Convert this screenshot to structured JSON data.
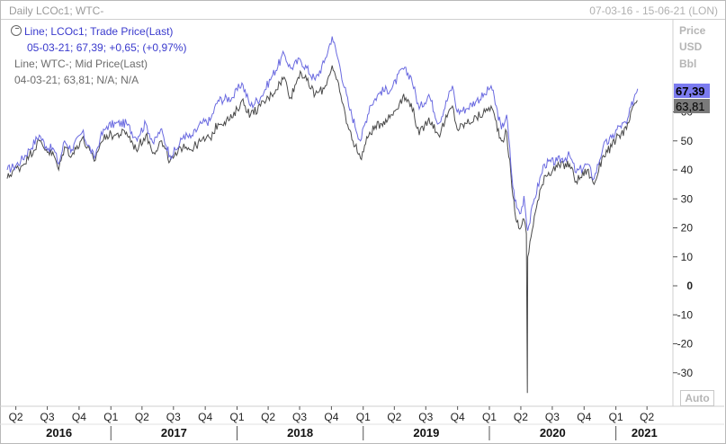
{
  "header": {
    "title": "Daily LCOc1; WTC-",
    "date_range": "07-03-16 - 15-06-21 (LON)"
  },
  "legend": {
    "series1_label": "Line; LCOc1; Trade Price(Last)",
    "series1_value": "05-03-21; 67,39; +0,65; (+0,97%)",
    "series2_label": "Line; WTC-; Mid Price(Last)",
    "series2_value": "04-03-21; 63,81; N/A; N/A"
  },
  "axis_header": {
    "line1": "Price",
    "line2": "USD",
    "line3": "Bbl"
  },
  "auto_button": "Auto",
  "colors": {
    "lco": "#6a6ae0",
    "wtc": "#4a4a4a",
    "lco_badge": "#7b7bf0",
    "wtc_badge": "#7a7a7a",
    "grid_tick": "#555555"
  },
  "chart_data": {
    "type": "line",
    "x_range": [
      "2016-03-07",
      "2021-06-15"
    ],
    "ylim": [
      -38,
      75
    ],
    "y_ticks": [
      60,
      50,
      40,
      30,
      20,
      10,
      0,
      -10,
      -20,
      -30
    ],
    "y_tick_labels": [
      "60",
      "50",
      "40",
      "30",
      "20",
      "10",
      "0",
      "-10",
      "-20",
      "-30"
    ],
    "x_ticks": [
      {
        "label": "Q2",
        "date": "2016-04-01"
      },
      {
        "label": "Q3",
        "date": "2016-07-01"
      },
      {
        "label": "Q4",
        "date": "2016-10-01"
      },
      {
        "label": "Q1",
        "date": "2017-01-01"
      },
      {
        "label": "Q2",
        "date": "2017-04-01"
      },
      {
        "label": "Q3",
        "date": "2017-07-01"
      },
      {
        "label": "Q4",
        "date": "2017-10-01"
      },
      {
        "label": "Q1",
        "date": "2018-01-01"
      },
      {
        "label": "Q2",
        "date": "2018-04-01"
      },
      {
        "label": "Q3",
        "date": "2018-07-01"
      },
      {
        "label": "Q4",
        "date": "2018-10-01"
      },
      {
        "label": "Q1",
        "date": "2019-01-01"
      },
      {
        "label": "Q2",
        "date": "2019-04-01"
      },
      {
        "label": "Q3",
        "date": "2019-07-01"
      },
      {
        "label": "Q4",
        "date": "2019-10-01"
      },
      {
        "label": "Q1",
        "date": "2020-01-01"
      },
      {
        "label": "Q2",
        "date": "2020-04-01"
      },
      {
        "label": "Q3",
        "date": "2020-07-01"
      },
      {
        "label": "Q4",
        "date": "2020-10-01"
      },
      {
        "label": "Q1",
        "date": "2021-01-01"
      },
      {
        "label": "Q2",
        "date": "2021-04-01"
      }
    ],
    "years": [
      {
        "label": "2016",
        "date": "2016-01-01"
      },
      {
        "label": "2017",
        "date": "2017-01-01"
      },
      {
        "label": "2018",
        "date": "2018-01-01"
      },
      {
        "label": "2019",
        "date": "2019-01-01"
      },
      {
        "label": "2020",
        "date": "2020-01-01"
      },
      {
        "label": "2021",
        "date": "2021-01-01"
      }
    ],
    "series": [
      {
        "name": "LCOc1",
        "last_label": "67,39",
        "points": [
          [
            "2016-03-07",
            40
          ],
          [
            "2016-03-25",
            41
          ],
          [
            "2016-04-15",
            43
          ],
          [
            "2016-05-10",
            47
          ],
          [
            "2016-06-08",
            52
          ],
          [
            "2016-06-28",
            48
          ],
          [
            "2016-07-20",
            47
          ],
          [
            "2016-08-03",
            42
          ],
          [
            "2016-08-20",
            50
          ],
          [
            "2016-09-10",
            47
          ],
          [
            "2016-10-10",
            53
          ],
          [
            "2016-11-14",
            44
          ],
          [
            "2016-12-01",
            51
          ],
          [
            "2016-12-20",
            55
          ],
          [
            "2017-01-15",
            56
          ],
          [
            "2017-02-15",
            56
          ],
          [
            "2017-03-15",
            51
          ],
          [
            "2017-04-12",
            56
          ],
          [
            "2017-05-05",
            49
          ],
          [
            "2017-05-25",
            54
          ],
          [
            "2017-06-21",
            45
          ],
          [
            "2017-07-10",
            47
          ],
          [
            "2017-07-31",
            52
          ],
          [
            "2017-08-20",
            51
          ],
          [
            "2017-09-20",
            56
          ],
          [
            "2017-10-15",
            57
          ],
          [
            "2017-11-07",
            64
          ],
          [
            "2017-12-20",
            65
          ],
          [
            "2018-01-15",
            70
          ],
          [
            "2018-02-09",
            62
          ],
          [
            "2018-03-10",
            65
          ],
          [
            "2018-04-11",
            72
          ],
          [
            "2018-05-17",
            80
          ],
          [
            "2018-06-05",
            75
          ],
          [
            "2018-07-03",
            78
          ],
          [
            "2018-08-15",
            71
          ],
          [
            "2018-09-10",
            77
          ],
          [
            "2018-10-03",
            86
          ],
          [
            "2018-10-25",
            76
          ],
          [
            "2018-11-20",
            62
          ],
          [
            "2018-12-24",
            50
          ],
          [
            "2019-01-20",
            62
          ],
          [
            "2019-02-20",
            67
          ],
          [
            "2019-03-25",
            68
          ],
          [
            "2019-04-25",
            75
          ],
          [
            "2019-05-20",
            72
          ],
          [
            "2019-06-12",
            61
          ],
          [
            "2019-07-10",
            66
          ],
          [
            "2019-08-07",
            56
          ],
          [
            "2019-09-16",
            69
          ],
          [
            "2019-09-30",
            60
          ],
          [
            "2019-10-25",
            61
          ],
          [
            "2019-11-25",
            64
          ],
          [
            "2019-12-20",
            66
          ],
          [
            "2020-01-06",
            69
          ],
          [
            "2020-02-05",
            54
          ],
          [
            "2020-02-20",
            59
          ],
          [
            "2020-03-09",
            34
          ],
          [
            "2020-03-20",
            27
          ],
          [
            "2020-04-01",
            25
          ],
          [
            "2020-04-10",
            31
          ],
          [
            "2020-04-21",
            19
          ],
          [
            "2020-05-10",
            30
          ],
          [
            "2020-06-08",
            42
          ],
          [
            "2020-07-15",
            43
          ],
          [
            "2020-08-20",
            45
          ],
          [
            "2020-09-08",
            39
          ],
          [
            "2020-10-10",
            42
          ],
          [
            "2020-10-30",
            37
          ],
          [
            "2020-11-25",
            48
          ],
          [
            "2020-12-20",
            51
          ],
          [
            "2021-01-10",
            55
          ],
          [
            "2021-02-01",
            56
          ],
          [
            "2021-02-25",
            66
          ],
          [
            "2021-03-05",
            68
          ]
        ]
      },
      {
        "name": "WTC-",
        "last_label": "63,81",
        "points": [
          [
            "2016-03-07",
            37
          ],
          [
            "2016-03-25",
            40
          ],
          [
            "2016-04-15",
            41
          ],
          [
            "2016-05-10",
            45
          ],
          [
            "2016-06-08",
            50
          ],
          [
            "2016-06-28",
            47
          ],
          [
            "2016-07-20",
            45
          ],
          [
            "2016-08-03",
            40
          ],
          [
            "2016-08-20",
            48
          ],
          [
            "2016-09-10",
            45
          ],
          [
            "2016-10-10",
            51
          ],
          [
            "2016-11-14",
            43
          ],
          [
            "2016-12-01",
            49
          ],
          [
            "2016-12-20",
            52
          ],
          [
            "2017-01-15",
            52
          ],
          [
            "2017-02-15",
            53
          ],
          [
            "2017-03-15",
            47
          ],
          [
            "2017-04-12",
            52
          ],
          [
            "2017-05-05",
            46
          ],
          [
            "2017-05-25",
            50
          ],
          [
            "2017-06-21",
            43
          ],
          [
            "2017-07-10",
            45
          ],
          [
            "2017-07-31",
            49
          ],
          [
            "2017-08-20",
            47
          ],
          [
            "2017-09-20",
            50
          ],
          [
            "2017-10-15",
            51
          ],
          [
            "2017-11-07",
            56
          ],
          [
            "2017-12-20",
            58
          ],
          [
            "2018-01-15",
            64
          ],
          [
            "2018-02-09",
            59
          ],
          [
            "2018-03-10",
            62
          ],
          [
            "2018-04-11",
            66
          ],
          [
            "2018-05-17",
            72
          ],
          [
            "2018-06-05",
            65
          ],
          [
            "2018-07-03",
            74
          ],
          [
            "2018-08-15",
            66
          ],
          [
            "2018-09-10",
            68
          ],
          [
            "2018-10-03",
            76
          ],
          [
            "2018-10-25",
            67
          ],
          [
            "2018-11-20",
            54
          ],
          [
            "2018-12-24",
            44
          ],
          [
            "2019-01-20",
            53
          ],
          [
            "2019-02-20",
            56
          ],
          [
            "2019-03-25",
            59
          ],
          [
            "2019-04-25",
            65
          ],
          [
            "2019-05-20",
            63
          ],
          [
            "2019-06-12",
            52
          ],
          [
            "2019-07-10",
            58
          ],
          [
            "2019-08-07",
            52
          ],
          [
            "2019-09-16",
            62
          ],
          [
            "2019-09-30",
            54
          ],
          [
            "2019-10-25",
            56
          ],
          [
            "2019-11-25",
            58
          ],
          [
            "2019-12-20",
            60
          ],
          [
            "2020-01-06",
            62
          ],
          [
            "2020-02-05",
            50
          ],
          [
            "2020-02-20",
            53
          ],
          [
            "2020-03-09",
            31
          ],
          [
            "2020-03-20",
            22
          ],
          [
            "2020-04-01",
            20
          ],
          [
            "2020-04-10",
            23
          ],
          [
            "2020-04-17",
            18
          ],
          [
            "2020-04-20",
            -37
          ],
          [
            "2020-04-21",
            10
          ],
          [
            "2020-05-10",
            24
          ],
          [
            "2020-06-08",
            38
          ],
          [
            "2020-07-15",
            41
          ],
          [
            "2020-08-20",
            42
          ],
          [
            "2020-09-08",
            36
          ],
          [
            "2020-10-10",
            40
          ],
          [
            "2020-10-30",
            35
          ],
          [
            "2020-11-25",
            45
          ],
          [
            "2020-12-20",
            48
          ],
          [
            "2021-01-10",
            52
          ],
          [
            "2021-02-01",
            54
          ],
          [
            "2021-02-25",
            63
          ],
          [
            "2021-03-04",
            64
          ]
        ]
      }
    ]
  }
}
